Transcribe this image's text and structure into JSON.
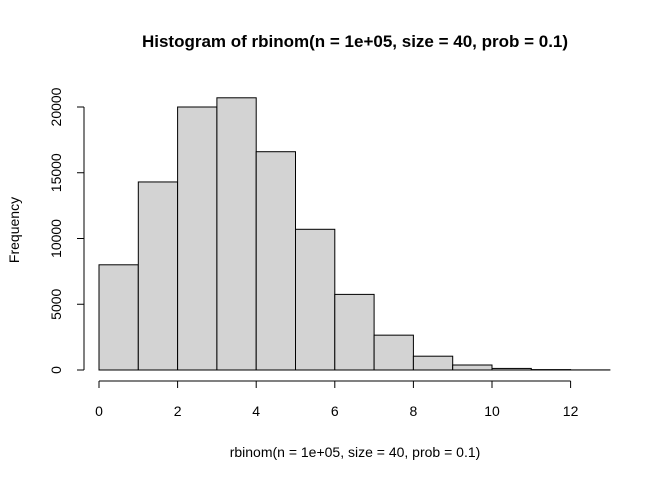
{
  "chart_data": {
    "type": "bar",
    "title": "Histogram of rbinom(n = 1e+05, size = 40, prob = 0.1)",
    "xlabel": "rbinom(n = 1e+05, size = 40, prob = 0.1)",
    "ylabel": "Frequency",
    "bins": [
      {
        "x0": 0,
        "x1": 1,
        "value": 8000
      },
      {
        "x0": 1,
        "x1": 2,
        "value": 14300
      },
      {
        "x0": 2,
        "x1": 3,
        "value": 20000
      },
      {
        "x0": 3,
        "x1": 4,
        "value": 20700
      },
      {
        "x0": 4,
        "x1": 5,
        "value": 16600
      },
      {
        "x0": 5,
        "x1": 6,
        "value": 10700
      },
      {
        "x0": 6,
        "x1": 7,
        "value": 5750
      },
      {
        "x0": 7,
        "x1": 8,
        "value": 2650
      },
      {
        "x0": 8,
        "x1": 9,
        "value": 1050
      },
      {
        "x0": 9,
        "x1": 10,
        "value": 380
      },
      {
        "x0": 10,
        "x1": 11,
        "value": 120
      },
      {
        "x0": 11,
        "x1": 12,
        "value": 30
      },
      {
        "x0": 12,
        "x1": 13,
        "value": 8
      }
    ],
    "x_ticks": [
      "0",
      "2",
      "4",
      "6",
      "8",
      "10",
      "12"
    ],
    "y_ticks": [
      "0",
      "5000",
      "10000",
      "15000",
      "20000"
    ],
    "xlim": [
      0,
      13
    ],
    "ylim": [
      0,
      21000
    ],
    "grid": false,
    "bar_color": "#d3d3d3",
    "border_color": "#000000"
  }
}
